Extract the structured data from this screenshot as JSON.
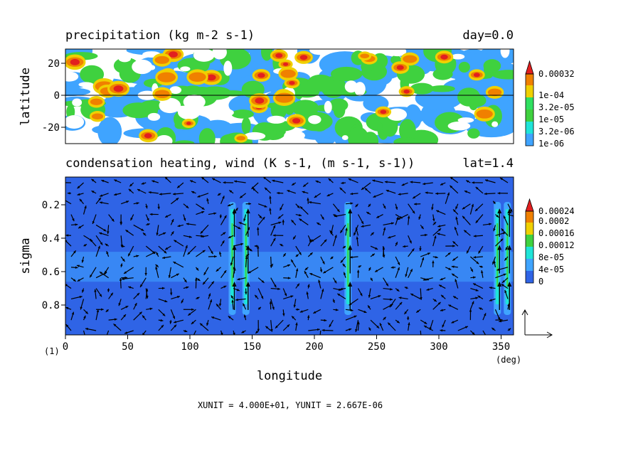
{
  "chart_data": [
    {
      "type": "heatmap",
      "title": "precipitation (kg m-2 s-1)",
      "title_right": "day=0.0",
      "ylabel": "latitude",
      "yticks": [
        "20",
        "0",
        "-20"
      ],
      "ylim": [
        -30,
        30
      ],
      "xlim": [
        0,
        360
      ],
      "zero_line": true,
      "colorbar": {
        "labels": [
          "1e-06",
          "3.2e-06",
          "1e-05",
          "3.2e-05",
          "1e-04",
          "0.00032"
        ],
        "colors": [
          "#3fa4ff",
          "#1fe4d8",
          "#3fd13f",
          "#2fe060",
          "#f0d000",
          "#f08000",
          "#e21f1f"
        ]
      }
    },
    {
      "type": "heatmap",
      "title": "condensation heating, wind (K s-1, (m s-1, s-1))",
      "title_right": "lat=1.4",
      "ylabel": "sigma",
      "xlabel": "longitude",
      "xticks": [
        "0",
        "50",
        "100",
        "150",
        "200",
        "250",
        "300",
        "350"
      ],
      "yticks": [
        "0.2",
        "0.4",
        "0.6",
        "0.8"
      ],
      "ylim": [
        1.0,
        0.05
      ],
      "xlim": [
        0,
        360
      ],
      "heating_columns_longitude": [
        134,
        145,
        227,
        347,
        355
      ],
      "colorbar": {
        "labels": [
          "0",
          "4e-05",
          "8e-05",
          "0.00012",
          "0.00016",
          "0.0002",
          "0.00024"
        ],
        "colors": [
          "#2f64e6",
          "#3fa4ff",
          "#1fe4d8",
          "#3fd13f",
          "#f0d000",
          "#f08000",
          "#e21f1f"
        ]
      }
    }
  ],
  "footer": {
    "page_marker": "(1)",
    "x_unit_label": "(deg)",
    "units_text": "XUNIT = 4.000E+01, YUNIT = 2.667E-06"
  }
}
